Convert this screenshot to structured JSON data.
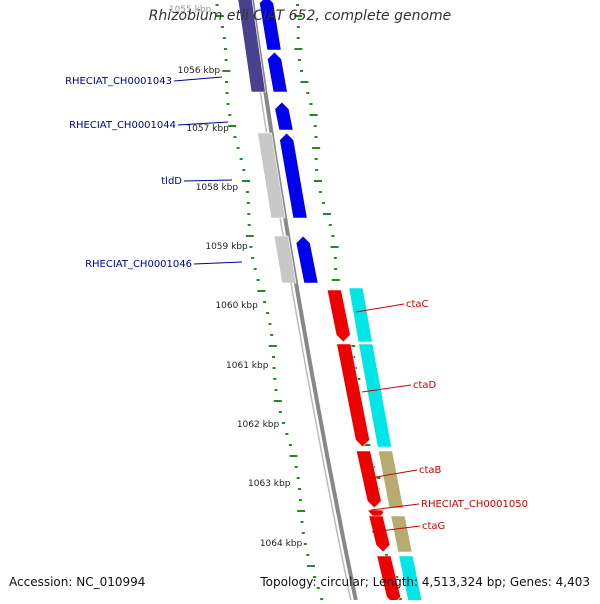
{
  "title": "Rhizobium etli CIAT 652, complete genome",
  "accession": "Accession: NC_010994",
  "stats": {
    "topology": "Topology: circular",
    "length": "Length: 4,513,324 bp",
    "genes": "Genes: 4,403"
  },
  "ruler": {
    "unit": "kbp",
    "ticks": [
      1055,
      1056,
      1057,
      1058,
      1059,
      1060,
      1061,
      1062,
      1063,
      1064
    ]
  },
  "colors": {
    "gene_plus": "#0000ee",
    "gene_minus": "#ee0000",
    "cds_plus": "#c8c8c8",
    "cds_minus": "#00e5e5",
    "cds_alt": "#b8ab70",
    "backbone": "#888888",
    "gc_skew": "#228b22",
    "label_plus": "#000099",
    "label_minus": "#cc0000"
  },
  "labels": [
    {
      "text": "RHECIAT_CH0001043",
      "strand": "+"
    },
    {
      "text": "RHECIAT_CH0001044",
      "strand": "+"
    },
    {
      "text": "tldD",
      "strand": "+"
    },
    {
      "text": "RHECIAT_CH0001046",
      "strand": "+"
    },
    {
      "text": "ctaC",
      "strand": "-"
    },
    {
      "text": "ctaD",
      "strand": "-"
    },
    {
      "text": "ctaB",
      "strand": "-"
    },
    {
      "text": "RHECIAT_CH0001050",
      "strand": "-"
    },
    {
      "text": "ctaG",
      "strand": "-"
    }
  ]
}
